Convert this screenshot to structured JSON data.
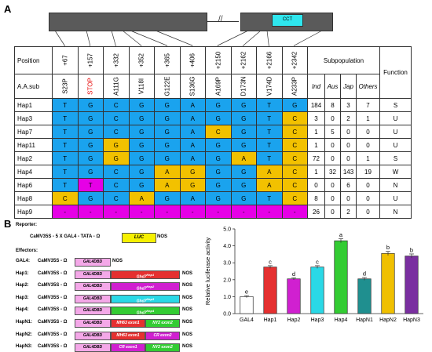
{
  "panels": {
    "a": "A",
    "b": "B"
  },
  "gene": {
    "domain_label": "CCT"
  },
  "table": {
    "position_header": "Position",
    "aa_header": "A.A.sub",
    "positions": [
      "+67",
      "+157",
      "+332",
      "+352",
      "+365",
      "+406",
      "+2150",
      "+2162",
      "+2166",
      "+2342"
    ],
    "aa_subs": [
      "S23P",
      "STOP",
      "A111G",
      "V118I",
      "G122E",
      "S136G",
      "A169P",
      "D173N",
      "V174D",
      "A233P"
    ],
    "subpop_header": "Subpopulation",
    "subpops": [
      "Ind",
      "Aus",
      "Jap",
      "Others"
    ],
    "function_header": "Function",
    "rows": [
      {
        "name": "Hap1",
        "alleles": [
          "T",
          "G",
          "C",
          "G",
          "G",
          "A",
          "G",
          "G",
          "T",
          "G"
        ],
        "colors": [
          "b",
          "b",
          "b",
          "b",
          "b",
          "b",
          "b",
          "b",
          "b",
          "b"
        ],
        "counts": [
          "184",
          "8",
          "3",
          "7"
        ],
        "func": "S"
      },
      {
        "name": "Hap3",
        "alleles": [
          "T",
          "G",
          "C",
          "G",
          "G",
          "A",
          "G",
          "G",
          "T",
          "C"
        ],
        "colors": [
          "b",
          "b",
          "b",
          "b",
          "b",
          "b",
          "b",
          "b",
          "b",
          "y"
        ],
        "counts": [
          "3",
          "0",
          "2",
          "1"
        ],
        "func": "U"
      },
      {
        "name": "Hap7",
        "alleles": [
          "T",
          "G",
          "C",
          "G",
          "G",
          "A",
          "C",
          "G",
          "T",
          "C"
        ],
        "colors": [
          "b",
          "b",
          "b",
          "b",
          "b",
          "b",
          "y",
          "b",
          "b",
          "y"
        ],
        "counts": [
          "1",
          "5",
          "0",
          "0"
        ],
        "func": "U"
      },
      {
        "name": "Hap11",
        "alleles": [
          "T",
          "G",
          "G",
          "G",
          "G",
          "A",
          "G",
          "G",
          "T",
          "C"
        ],
        "colors": [
          "b",
          "b",
          "y",
          "b",
          "b",
          "b",
          "b",
          "b",
          "b",
          "y"
        ],
        "counts": [
          "1",
          "0",
          "0",
          "0"
        ],
        "func": "U"
      },
      {
        "name": "Hap2",
        "alleles": [
          "T",
          "G",
          "G",
          "G",
          "G",
          "A",
          "G",
          "A",
          "T",
          "C"
        ],
        "colors": [
          "b",
          "b",
          "y",
          "b",
          "b",
          "b",
          "b",
          "y",
          "b",
          "y"
        ],
        "counts": [
          "72",
          "0",
          "0",
          "1"
        ],
        "func": "S"
      },
      {
        "name": "Hap4",
        "alleles": [
          "T",
          "G",
          "C",
          "G",
          "A",
          "G",
          "G",
          "G",
          "A",
          "C"
        ],
        "colors": [
          "b",
          "b",
          "b",
          "b",
          "y",
          "y",
          "b",
          "b",
          "y",
          "y"
        ],
        "counts": [
          "1",
          "32",
          "143",
          "19"
        ],
        "func": "W"
      },
      {
        "name": "Hap6",
        "alleles": [
          "T",
          "T",
          "C",
          "G",
          "A",
          "G",
          "G",
          "G",
          "A",
          "C"
        ],
        "colors": [
          "b",
          "m",
          "b",
          "b",
          "y",
          "y",
          "b",
          "b",
          "y",
          "y"
        ],
        "counts": [
          "0",
          "0",
          "6",
          "0"
        ],
        "func": "N"
      },
      {
        "name": "Hap8",
        "alleles": [
          "C",
          "G",
          "C",
          "A",
          "G",
          "A",
          "G",
          "G",
          "T",
          "C"
        ],
        "colors": [
          "y",
          "b",
          "b",
          "y",
          "b",
          "b",
          "b",
          "b",
          "b",
          "y"
        ],
        "counts": [
          "8",
          "0",
          "0",
          "0"
        ],
        "func": "U"
      },
      {
        "name": "Hap9",
        "alleles": [
          "-",
          "-",
          "-",
          "-",
          "-",
          "-",
          "-",
          "-",
          "-",
          "-"
        ],
        "colors": [
          "m",
          "m",
          "m",
          "m",
          "m",
          "m",
          "m",
          "m",
          "m",
          "m"
        ],
        "counts": [
          "26",
          "0",
          "2",
          "0"
        ],
        "func": "N"
      }
    ]
  },
  "reporter": {
    "title": "Reporter:",
    "prefix": "CaMV35S - 5 X GAL4 - TATA - Ω",
    "luc": "LUC",
    "suffix": "NOS"
  },
  "effectors": {
    "title": "Effectors:",
    "gal4_line": {
      "name": "GAL4:",
      "prefix": "CaMV35S - Ω",
      "dbd": "GAL4DBD",
      "suffix": "NOS"
    },
    "lines": [
      {
        "name": "Hap1:",
        "prefix": "CaMV35S - Ω",
        "dbd": "GAL4DBD",
        "segs": [
          {
            "text": "Ghd7",
            "sup": "Hap1",
            "color": "#e53030"
          }
        ],
        "suffix": "NOS"
      },
      {
        "name": "Hap2:",
        "prefix": "CaMV35S - Ω",
        "dbd": "GAL4DBD",
        "segs": [
          {
            "text": "Ghd7",
            "sup": "Hap2",
            "color": "#d020d0"
          }
        ],
        "suffix": "NOS"
      },
      {
        "name": "Hap3:",
        "prefix": "CaMV35S - Ω",
        "dbd": "GAL4DBD",
        "segs": [
          {
            "text": "Ghd7",
            "sup": "Hap3",
            "color": "#2ad8e6"
          }
        ],
        "suffix": "NOS"
      },
      {
        "name": "Hap4:",
        "prefix": "CaMV35S - Ω",
        "dbd": "GAL4DBD",
        "segs": [
          {
            "text": "Ghd7",
            "sup": "Hap4",
            "color": "#33cc33"
          }
        ],
        "suffix": "NOS"
      },
      {
        "name": "HapN1:",
        "prefix": "CaMV35S - Ω",
        "dbd": "GAL4DBD",
        "segs": [
          {
            "text": "MH63 exon1",
            "sup": "",
            "color": "#e53030"
          },
          {
            "text": "NY2 exon2",
            "sup": "",
            "color": "#33cc33"
          }
        ],
        "suffix": "NOS"
      },
      {
        "name": "HapN2:",
        "prefix": "CaMV35S - Ω",
        "dbd": "GAL4DBD",
        "segs": [
          {
            "text": "MH63 exon1",
            "sup": "",
            "color": "#e53030"
          },
          {
            "text": "CR exon2",
            "sup": "",
            "color": "#d020d0"
          }
        ],
        "suffix": "NOS"
      },
      {
        "name": "HapN3:",
        "prefix": "CaMV35S - Ω",
        "dbd": "GAL4DBD",
        "segs": [
          {
            "text": "CR exon1",
            "sup": "",
            "color": "#d020d0"
          },
          {
            "text": "NY2 exon2",
            "sup": "",
            "color": "#33cc33"
          }
        ],
        "suffix": "NOS"
      }
    ]
  },
  "chart_data": {
    "type": "bar",
    "categories": [
      "GAL4",
      "Hap1",
      "Hap2",
      "Hap3",
      "Hap4",
      "HapN1",
      "HapN2",
      "HapN3"
    ],
    "values": [
      1.0,
      2.75,
      2.05,
      2.75,
      4.3,
      2.05,
      3.55,
      3.4
    ],
    "errors": [
      0.06,
      0.08,
      0.06,
      0.08,
      0.12,
      0.08,
      0.12,
      0.12
    ],
    "letters": [
      "e",
      "c",
      "d",
      "c",
      "a",
      "d",
      "b",
      "b"
    ],
    "colors": [
      "#ffffff",
      "#e53030",
      "#d020d0",
      "#2ad8e6",
      "#33cc33",
      "#1f8f8f",
      "#f0c000",
      "#7a2fa0"
    ],
    "letter_colors": [
      "#000000",
      "#000000",
      "#000000",
      "#000000",
      "#000000",
      "#000000",
      "#000000",
      "#000000"
    ],
    "ylabel": "Relative luciferase activity",
    "ylim": [
      0,
      5
    ],
    "yticks": [
      "0.0",
      "1.0",
      "2.0",
      "3.0",
      "4.0",
      "5.0"
    ]
  }
}
